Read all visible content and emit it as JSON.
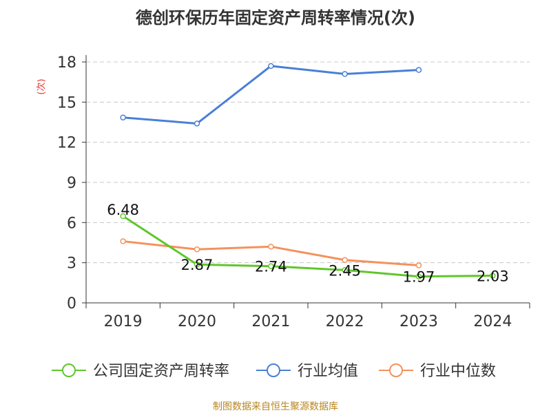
{
  "chart_data": {
    "type": "line",
    "title": "德创环保历年固定资产周转率情况(次)",
    "ylabel": "(次)",
    "xlabel": "",
    "categories": [
      "2019",
      "2020",
      "2021",
      "2022",
      "2023",
      "2024"
    ],
    "ylim": [
      0,
      18
    ],
    "yticks": [
      0,
      3,
      6,
      9,
      12,
      15,
      18
    ],
    "grid": true,
    "legend_position": "bottom",
    "series": [
      {
        "name": "公司固定资产周转率",
        "color": "#5ec72b",
        "values": [
          6.48,
          2.87,
          2.74,
          2.45,
          1.97,
          2.03
        ],
        "labels": [
          "6.48",
          "2.87",
          "2.74",
          "2.45",
          "1.97",
          "2.03"
        ]
      },
      {
        "name": "行业均值",
        "color": "#4a7fd6",
        "values": [
          13.85,
          13.4,
          17.7,
          17.1,
          17.4,
          null
        ]
      },
      {
        "name": "行业中位数",
        "color": "#f5915b",
        "values": [
          4.6,
          4.0,
          4.2,
          3.2,
          2.8,
          null
        ]
      }
    ],
    "source": "制图数据来自恒生聚源数据库"
  }
}
